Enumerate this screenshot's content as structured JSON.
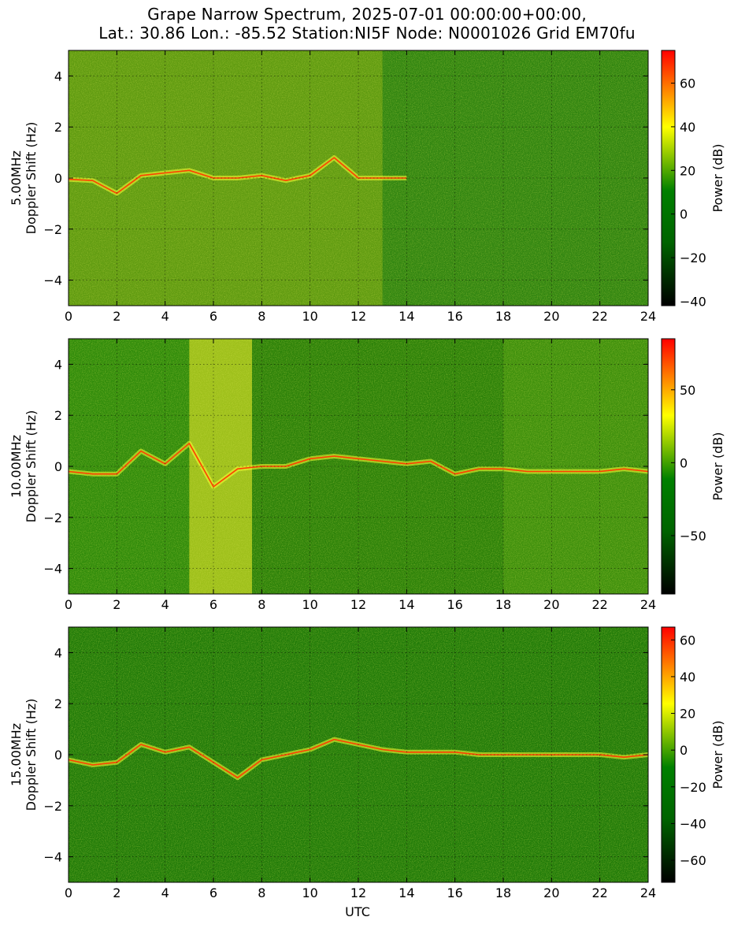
{
  "title_line1": "Grape Narrow Spectrum, 2025-07-01 00:00:00+00:00,",
  "title_line2": "Lat.: 30.86 Lon.: -85.52 Station:NI5F Node: N0001026 Grid EM70fu",
  "colors": {
    "colormap": [
      "#000000",
      "#006400",
      "#008000",
      "#ffff00",
      "#ff8000",
      "#ff0000"
    ]
  },
  "chart_data": [
    {
      "type": "heatmap",
      "title": "",
      "ylabel": "5.00MHz\nDoppler Shift (Hz)",
      "xlabel": "",
      "xlim": [
        0,
        24
      ],
      "ylim": [
        -5,
        5
      ],
      "xticks": [
        0,
        2,
        4,
        6,
        8,
        10,
        12,
        14,
        16,
        18,
        20,
        22,
        24
      ],
      "yticks": [
        -4,
        -2,
        0,
        2,
        4
      ],
      "grid": true,
      "colorbar": {
        "label": "Power (dB)",
        "range": [
          -42,
          75
        ],
        "ticks": [
          -40,
          -20,
          0,
          20,
          40,
          60
        ]
      },
      "doppler_trace": {
        "x": [
          0,
          1,
          2,
          3,
          4,
          5,
          6,
          7,
          8,
          9,
          10,
          11,
          12,
          13,
          14
        ],
        "y": [
          -0.05,
          -0.1,
          -0.6,
          0.1,
          0.2,
          0.3,
          0.0,
          0.0,
          0.1,
          -0.1,
          0.1,
          0.8,
          0.0,
          0.0,
          0.0
        ]
      }
    },
    {
      "type": "heatmap",
      "title": "",
      "ylabel": "10.00MHz\nDoppler Shift (Hz)",
      "xlabel": "",
      "xlim": [
        0,
        24
      ],
      "ylim": [
        -5,
        5
      ],
      "xticks": [
        0,
        2,
        4,
        6,
        8,
        10,
        12,
        14,
        16,
        18,
        20,
        22,
        24
      ],
      "yticks": [
        -4,
        -2,
        0,
        2,
        4
      ],
      "grid": true,
      "colorbar": {
        "label": "Power (dB)",
        "range": [
          -90,
          85
        ],
        "ticks": [
          -50,
          0,
          50
        ]
      },
      "doppler_trace": {
        "x": [
          0,
          1,
          2,
          3,
          4,
          5,
          6,
          7,
          8,
          9,
          10,
          11,
          12,
          13,
          14,
          15,
          16,
          17,
          18,
          19,
          20,
          21,
          22,
          23,
          24
        ],
        "y": [
          -0.2,
          -0.3,
          -0.3,
          0.6,
          0.1,
          0.9,
          -0.8,
          -0.1,
          0.0,
          0.0,
          0.3,
          0.4,
          0.3,
          0.2,
          0.1,
          0.2,
          -0.3,
          -0.1,
          -0.1,
          -0.2,
          -0.2,
          -0.2,
          -0.2,
          -0.1,
          -0.2
        ]
      }
    },
    {
      "type": "heatmap",
      "title": "",
      "ylabel": "15.00MHz\nDoppler Shift (Hz)",
      "xlabel": "UTC",
      "xlim": [
        0,
        24
      ],
      "ylim": [
        -5,
        5
      ],
      "xticks": [
        0,
        2,
        4,
        6,
        8,
        10,
        12,
        14,
        16,
        18,
        20,
        22,
        24
      ],
      "yticks": [
        -4,
        -2,
        0,
        2,
        4
      ],
      "grid": true,
      "colorbar": {
        "label": "Power (dB)",
        "range": [
          -72,
          67
        ],
        "ticks": [
          -60,
          -40,
          -20,
          0,
          20,
          40,
          60
        ]
      },
      "doppler_trace": {
        "x": [
          0,
          1,
          2,
          3,
          4,
          5,
          6,
          7,
          8,
          9,
          10,
          11,
          12,
          13,
          14,
          15,
          16,
          17,
          18,
          19,
          20,
          21,
          22,
          23,
          24
        ],
        "y": [
          -0.2,
          -0.4,
          -0.3,
          0.4,
          0.1,
          0.3,
          -0.3,
          -0.9,
          -0.2,
          0.0,
          0.2,
          0.6,
          0.4,
          0.2,
          0.1,
          0.1,
          0.1,
          0.0,
          0.0,
          0.0,
          0.0,
          0.0,
          0.0,
          -0.1,
          0.0
        ]
      }
    }
  ]
}
